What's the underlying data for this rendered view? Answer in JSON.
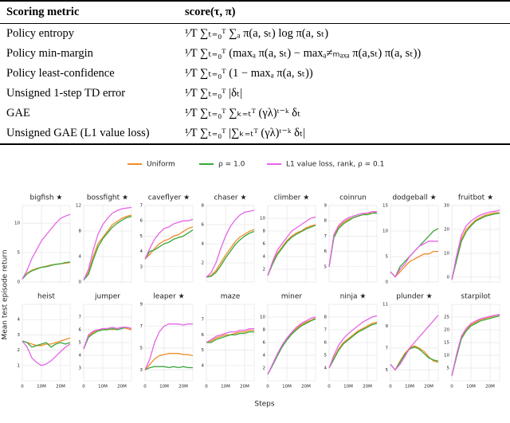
{
  "table": {
    "header": [
      "Scoring metric",
      "score(τ, π)"
    ],
    "rows": [
      [
        "Policy entropy",
        "¹⁄T ∑ₜ₌₀ᵀ ∑ₐ π(a, sₜ) log π(a, sₜ)"
      ],
      [
        "Policy min-margin",
        "¹⁄T ∑ₜ₌₀ᵀ (maxₐ π(a, sₜ) − maxₐ≠ₘₐₓₐ π(a,sₜ) π(a, sₜ))"
      ],
      [
        "Policy least-confidence",
        "¹⁄T ∑ₜ₌₀ᵀ (1 − maxₐ π(a, sₜ))"
      ],
      [
        "Unsigned 1-step TD error",
        "¹⁄T ∑ₜ₌₀ᵀ |δₜ|"
      ],
      [
        "GAE",
        "¹⁄T ∑ₜ₌₀ᵀ ∑ₖ₌ₜᵀ (γλ)ᵗ⁻ᵏ δₜ"
      ],
      [
        "Unsigned GAE (L1 value loss)",
        "¹⁄T ∑ₜ₌₀ᵀ |∑ₖ₌ₜᵀ (γλ)ᵗ⁻ᵏ δₜ|"
      ]
    ]
  },
  "figure": {
    "legend": [
      {
        "name": "Uniform",
        "color": "#f28c28"
      },
      {
        "name": "ρ = 1.0",
        "color": "#3aa63a"
      },
      {
        "name": "L1 value loss, rank, ρ = 0.1",
        "color": "#e565e8"
      }
    ],
    "ylabel": "Mean test episode return",
    "xlabel": "Steps",
    "x": [
      0,
      2500000,
      5000000,
      7500000,
      10000000,
      12500000,
      15000000,
      17500000,
      20000000,
      22500000,
      25000000
    ],
    "xlim": [
      0,
      25000000
    ],
    "xticks": [
      0,
      {
        "value": 10000000,
        "label": "10M"
      },
      {
        "value": 20000000,
        "label": "20M"
      }
    ]
  },
  "chart_data": [
    {
      "type": "line",
      "title": "bigfish ★",
      "ylim": [
        0,
        13
      ],
      "yticks": [
        0,
        5,
        10
      ],
      "series": [
        {
          "values": [
            0.5,
            1.5,
            2,
            2.3,
            2.5,
            2.7,
            2.9,
            3,
            3.1,
            3.2,
            3.3
          ]
        },
        {
          "values": [
            0.5,
            1.4,
            1.9,
            2.2,
            2.5,
            2.6,
            2.8,
            3,
            3.1,
            3.3,
            3.4
          ]
        },
        {
          "values": [
            0.5,
            2,
            4,
            5.5,
            7,
            8,
            9,
            10,
            10.8,
            11.2,
            11.5
          ]
        }
      ]
    },
    {
      "type": "line",
      "title": "bossfight ★",
      "ylim": [
        0,
        12
      ],
      "yticks": [
        0,
        4,
        8,
        12
      ],
      "series": [
        {
          "values": [
            0.3,
            1.5,
            4,
            6,
            7,
            8,
            9,
            9.5,
            10,
            10.3,
            10.5
          ]
        },
        {
          "values": [
            0.3,
            1.2,
            3.5,
            5.5,
            6.8,
            7.7,
            8.6,
            9.2,
            9.7,
            10.1,
            10.3
          ]
        },
        {
          "values": [
            0.3,
            2,
            5,
            7.5,
            9,
            10,
            10.8,
            11.2,
            11.5,
            11.6,
            11.7
          ]
        }
      ]
    },
    {
      "type": "line",
      "title": "caveflyer ★",
      "ylim": [
        2,
        7
      ],
      "yticks": [
        3,
        4,
        5,
        6,
        7
      ],
      "series": [
        {
          "values": [
            3.5,
            3.8,
            4.2,
            4.5,
            4.7,
            4.8,
            5,
            5.1,
            5.3,
            5.5,
            5.6
          ]
        },
        {
          "values": [
            3.5,
            4,
            4.1,
            4.3,
            4.5,
            4.6,
            4.8,
            4.9,
            5,
            5.2,
            5.4
          ]
        },
        {
          "values": [
            3.5,
            4.2,
            4.8,
            5.2,
            5.5,
            5.6,
            5.8,
            5.9,
            6,
            6,
            6.1
          ]
        }
      ]
    },
    {
      "type": "line",
      "title": "chaser ★",
      "ylim": [
        0,
        8
      ],
      "yticks": [
        2,
        4,
        6,
        8
      ],
      "series": [
        {
          "values": [
            0.5,
            0.7,
            1.2,
            2,
            2.8,
            3.5,
            4.2,
            4.7,
            5,
            5.3,
            5.5
          ]
        },
        {
          "values": [
            0.5,
            0.6,
            1,
            1.7,
            2.5,
            3.2,
            3.9,
            4.4,
            4.8,
            5.1,
            5.3
          ]
        },
        {
          "values": [
            0.5,
            1,
            2,
            3.5,
            4.8,
            5.8,
            6.5,
            7,
            7.3,
            7.4,
            7.5
          ]
        }
      ]
    },
    {
      "type": "line",
      "title": "climber ★",
      "ylim": [
        0,
        12
      ],
      "yticks": [
        2,
        4,
        6,
        8,
        10
      ],
      "series": [
        {
          "values": [
            1,
            3,
            4.5,
            5.5,
            6.5,
            7.2,
            7.7,
            8,
            8.5,
            8.8,
            9
          ]
        },
        {
          "values": [
            1,
            2.8,
            4.3,
            5.3,
            6.3,
            7,
            7.5,
            7.9,
            8.3,
            8.6,
            8.9
          ]
        },
        {
          "values": [
            1,
            3.2,
            5,
            6,
            7,
            8,
            8.5,
            9,
            9.5,
            10,
            10.2
          ]
        }
      ]
    },
    {
      "type": "line",
      "title": "coinrun",
      "ylim": [
        4,
        9
      ],
      "yticks": [
        5,
        6,
        7,
        8,
        9
      ],
      "series": [
        {
          "values": [
            5,
            7,
            7.6,
            7.9,
            8.1,
            8.2,
            8.3,
            8.4,
            8.5,
            8.5,
            8.6
          ]
        },
        {
          "values": [
            5,
            6.9,
            7.5,
            7.8,
            8,
            8.2,
            8.3,
            8.4,
            8.4,
            8.5,
            8.5
          ]
        },
        {
          "values": [
            5,
            7.1,
            7.7,
            8,
            8.2,
            8.3,
            8.4,
            8.5,
            8.5,
            8.6,
            8.6
          ]
        }
      ]
    },
    {
      "type": "line",
      "title": "dodgeball ★",
      "ylim": [
        0,
        15
      ],
      "yticks": [
        0,
        5,
        10,
        15
      ],
      "series": [
        {
          "values": [
            2,
            1,
            2,
            3,
            4,
            4.5,
            5,
            5.5,
            5.5,
            6,
            6
          ]
        },
        {
          "values": [
            2,
            1,
            3,
            4,
            5,
            6,
            7,
            8,
            9,
            10,
            10.5
          ]
        },
        {
          "values": [
            2,
            1,
            2.5,
            3.5,
            5,
            6,
            7,
            7.5,
            8,
            8,
            8
          ]
        }
      ]
    },
    {
      "type": "line",
      "title": "fruitbot ★",
      "ylim": [
        -2,
        30
      ],
      "yticks": [
        0,
        10,
        20,
        30
      ],
      "series": [
        {
          "values": [
            -1,
            8,
            16,
            20,
            22,
            24,
            25,
            26,
            26.5,
            27,
            27
          ]
        },
        {
          "values": [
            -1,
            7,
            15,
            19,
            21.5,
            23.5,
            24.5,
            25.5,
            26,
            26.5,
            26.8
          ]
        },
        {
          "values": [
            -1,
            9,
            17.5,
            21.5,
            23.5,
            25,
            26,
            26.8,
            27.3,
            27.6,
            28
          ]
        }
      ]
    },
    {
      "type": "line",
      "title": "heist",
      "ylim": [
        0,
        5
      ],
      "yticks": [
        1,
        2,
        3,
        4
      ],
      "series": [
        {
          "values": [
            2.6,
            2.5,
            2.4,
            2.3,
            2.3,
            2.4,
            2.4,
            2.5,
            2.6,
            2.7,
            2.8
          ]
        },
        {
          "values": [
            2.6,
            2.5,
            2.2,
            2.3,
            2.4,
            2.5,
            2.2,
            2.4,
            2.5,
            2.4,
            2.5
          ]
        },
        {
          "values": [
            2.6,
            2.2,
            1.5,
            1.2,
            1,
            1.1,
            1.3,
            1.6,
            1.9,
            2.2,
            2.4
          ]
        }
      ]
    },
    {
      "type": "line",
      "title": "jumper",
      "ylim": [
        2,
        8
      ],
      "yticks": [
        3,
        4,
        5,
        6,
        7
      ],
      "series": [
        {
          "values": [
            4.5,
            5.5,
            5.8,
            6,
            6,
            6.1,
            6,
            6.1,
            6.2,
            6.1,
            6
          ]
        },
        {
          "values": [
            4.5,
            5.4,
            5.7,
            5.9,
            6,
            6,
            6.1,
            6,
            6.1,
            6.2,
            6.1
          ]
        },
        {
          "values": [
            4.5,
            5.6,
            5.9,
            6,
            6.1,
            6.1,
            6.2,
            6.1,
            6.2,
            6.2,
            6.1
          ]
        }
      ]
    },
    {
      "type": "line",
      "title": "leaper ★",
      "ylim": [
        2,
        9
      ],
      "yticks": [
        3,
        5,
        7,
        9
      ],
      "series": [
        {
          "values": [
            3,
            3.5,
            4,
            4.3,
            4.4,
            4.5,
            4.5,
            4.5,
            4.4,
            4.4,
            4.3
          ]
        },
        {
          "values": [
            3,
            3.2,
            3.3,
            3.3,
            3.3,
            3.2,
            3.3,
            3.2,
            3.3,
            3.2,
            3.2
          ]
        },
        {
          "values": [
            3,
            4,
            5.5,
            6.5,
            7,
            7.2,
            7.2,
            7.2,
            7.1,
            7.2,
            7.2
          ]
        }
      ]
    },
    {
      "type": "line",
      "title": "maze",
      "ylim": [
        3,
        8
      ],
      "yticks": [
        4,
        5,
        6,
        7
      ],
      "series": [
        {
          "values": [
            5.5,
            5.6,
            5.8,
            5.9,
            6,
            6,
            6.1,
            6.2,
            6.2,
            6.3,
            6.3
          ]
        },
        {
          "values": [
            5.5,
            5.5,
            5.7,
            5.8,
            5.9,
            6,
            6,
            6.1,
            6.1,
            6.2,
            6.2
          ]
        },
        {
          "values": [
            5.5,
            5.7,
            5.9,
            6,
            6.1,
            6.2,
            6.2,
            6.3,
            6.3,
            6.4,
            6.4
          ]
        }
      ]
    },
    {
      "type": "line",
      "title": "miner",
      "ylim": [
        0,
        12
      ],
      "yticks": [
        2,
        4,
        6,
        8,
        10
      ],
      "series": [
        {
          "values": [
            1,
            2.5,
            4,
            5.5,
            6.5,
            7.5,
            8.2,
            8.8,
            9.2,
            9.5,
            9.8
          ]
        },
        {
          "values": [
            1,
            2.4,
            3.9,
            5.3,
            6.4,
            7.3,
            8,
            8.6,
            9,
            9.4,
            9.7
          ]
        },
        {
          "values": [
            1,
            2.6,
            4.2,
            5.6,
            6.7,
            7.6,
            8.4,
            9,
            9.4,
            9.8,
            10
          ]
        }
      ]
    },
    {
      "type": "line",
      "title": "ninja ★",
      "ylim": [
        3,
        9
      ],
      "yticks": [
        4,
        5,
        6,
        7,
        8
      ],
      "series": [
        {
          "values": [
            4,
            4.8,
            5.5,
            6,
            6.3,
            6.6,
            6.9,
            7.1,
            7.3,
            7.5,
            7.6
          ]
        },
        {
          "values": [
            4,
            4.7,
            5.4,
            5.9,
            6.2,
            6.5,
            6.8,
            7,
            7.2,
            7.4,
            7.5
          ]
        },
        {
          "values": [
            4,
            5,
            5.8,
            6.3,
            6.7,
            7,
            7.3,
            7.6,
            7.8,
            8,
            8.1
          ]
        }
      ]
    },
    {
      "type": "line",
      "title": "plunder ★",
      "ylim": [
        4,
        11
      ],
      "yticks": [
        5,
        7,
        9,
        11
      ],
      "series": [
        {
          "values": [
            5.5,
            5,
            5.8,
            6.5,
            7,
            7.2,
            7,
            6.7,
            6.2,
            5.8,
            5.7
          ]
        },
        {
          "values": [
            5.5,
            5,
            5.7,
            6.4,
            6.9,
            7.1,
            6.9,
            6.5,
            6.1,
            5.9,
            5.8
          ]
        },
        {
          "values": [
            5.5,
            5,
            5.5,
            6.2,
            7,
            7.5,
            8,
            8.5,
            9,
            9.5,
            10
          ]
        }
      ]
    },
    {
      "type": "line",
      "title": "starpilot",
      "ylim": [
        0,
        30
      ],
      "yticks": [
        5,
        10,
        15,
        20,
        25
      ],
      "series": [
        {
          "values": [
            2,
            10,
            17,
            20,
            22,
            23,
            24,
            24.5,
            25,
            25.5,
            26
          ]
        },
        {
          "values": [
            2,
            9.5,
            16.5,
            19.5,
            21.5,
            22.5,
            23.5,
            24,
            24.5,
            25,
            25.5
          ]
        },
        {
          "values": [
            2,
            10.5,
            17.5,
            20.5,
            22.5,
            23.5,
            24.3,
            24.8,
            25.3,
            25.7,
            26
          ]
        }
      ]
    }
  ]
}
